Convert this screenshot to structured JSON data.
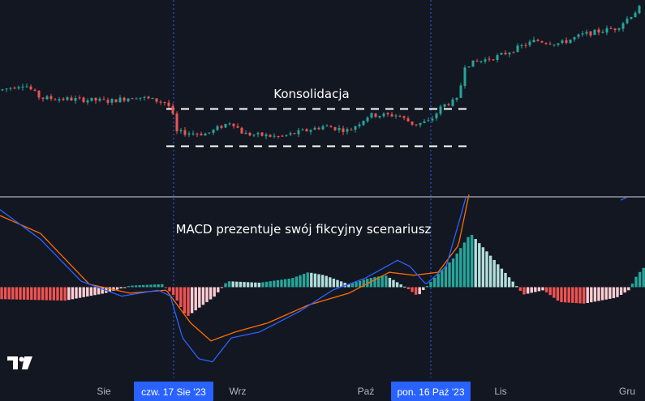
{
  "chart_data": [
    {
      "type": "candlestick",
      "title": "",
      "annotation": "Konsolidacja",
      "colors": {
        "up": "#26a69a",
        "down": "#ef5350",
        "dashed_range": "#ffffff",
        "marker_line": "#2962ff"
      },
      "consolidation_range": {
        "upper": 100.0,
        "lower": 88.0
      },
      "ylim": [
        72,
        135
      ],
      "price_path_anchors": [
        {
          "x": 0,
          "y": 106
        },
        {
          "x": 30,
          "y": 108
        },
        {
          "x": 50,
          "y": 103.5
        },
        {
          "x": 100,
          "y": 103
        },
        {
          "x": 135,
          "y": 102.5
        },
        {
          "x": 168,
          "y": 104
        },
        {
          "x": 205,
          "y": 102
        },
        {
          "x": 212,
          "y": 99.5
        },
        {
          "x": 216,
          "y": 92.5
        },
        {
          "x": 255,
          "y": 92
        },
        {
          "x": 285,
          "y": 96
        },
        {
          "x": 300,
          "y": 92
        },
        {
          "x": 345,
          "y": 91
        },
        {
          "x": 400,
          "y": 94.5
        },
        {
          "x": 430,
          "y": 93
        },
        {
          "x": 455,
          "y": 98
        },
        {
          "x": 490,
          "y": 98
        },
        {
          "x": 510,
          "y": 95
        },
        {
          "x": 530,
          "y": 96
        },
        {
          "x": 545,
          "y": 101
        },
        {
          "x": 565,
          "y": 103
        },
        {
          "x": 572,
          "y": 114
        },
        {
          "x": 615,
          "y": 117
        },
        {
          "x": 660,
          "y": 122
        },
        {
          "x": 690,
          "y": 121
        },
        {
          "x": 720,
          "y": 124
        },
        {
          "x": 760,
          "y": 126
        },
        {
          "x": 795,
          "y": 134
        }
      ]
    },
    {
      "type": "macd",
      "title": "",
      "annotation": "MACD prezentuje swój fikcyjny scenariusz",
      "ylim": [
        -3.0,
        3.0
      ],
      "colors": {
        "macd": "#2962ff",
        "signal": "#ff6d00",
        "hist_up_strong": "#26a69a",
        "hist_up_weak": "#b2dfdb",
        "hist_down_strong": "#ef5350",
        "hist_down_weak": "#ffcdd2"
      },
      "macd_line": [
        {
          "x": 0,
          "y": 2.6
        },
        {
          "x": 50,
          "y": 1.6
        },
        {
          "x": 100,
          "y": 0.2
        },
        {
          "x": 150,
          "y": -0.3
        },
        {
          "x": 195,
          "y": -0.1
        },
        {
          "x": 210,
          "y": -0.3
        },
        {
          "x": 225,
          "y": -1.7
        },
        {
          "x": 245,
          "y": -2.4
        },
        {
          "x": 262,
          "y": -2.5
        },
        {
          "x": 285,
          "y": -1.7
        },
        {
          "x": 320,
          "y": -1.5
        },
        {
          "x": 370,
          "y": -0.8
        },
        {
          "x": 410,
          "y": -0.1
        },
        {
          "x": 450,
          "y": 0.3
        },
        {
          "x": 490,
          "y": 0.9
        },
        {
          "x": 505,
          "y": 0.7
        },
        {
          "x": 525,
          "y": 0.1
        },
        {
          "x": 550,
          "y": 0.7
        },
        {
          "x": 568,
          "y": 2.4
        },
        {
          "x": 575,
          "y": 3.1
        }
      ],
      "signal_line": [
        {
          "x": 0,
          "y": 2.4
        },
        {
          "x": 50,
          "y": 1.8
        },
        {
          "x": 110,
          "y": 0.1
        },
        {
          "x": 160,
          "y": -0.2
        },
        {
          "x": 205,
          "y": -0.1
        },
        {
          "x": 235,
          "y": -1.2
        },
        {
          "x": 260,
          "y": -1.8
        },
        {
          "x": 290,
          "y": -1.5
        },
        {
          "x": 330,
          "y": -1.2
        },
        {
          "x": 380,
          "y": -0.6
        },
        {
          "x": 430,
          "y": -0.2
        },
        {
          "x": 480,
          "y": 0.5
        },
        {
          "x": 510,
          "y": 0.4
        },
        {
          "x": 540,
          "y": 0.5
        },
        {
          "x": 565,
          "y": 1.4
        },
        {
          "x": 578,
          "y": 3.1
        }
      ],
      "histogram_anchors": [
        {
          "x": 0,
          "y": -0.4
        },
        {
          "x": 80,
          "y": -0.45
        },
        {
          "x": 130,
          "y": -0.2
        },
        {
          "x": 160,
          "y": 0.05
        },
        {
          "x": 200,
          "y": 0.1
        },
        {
          "x": 215,
          "y": -0.3
        },
        {
          "x": 230,
          "y": -1.0
        },
        {
          "x": 265,
          "y": -0.3
        },
        {
          "x": 280,
          "y": 0.2
        },
        {
          "x": 320,
          "y": 0.15
        },
        {
          "x": 360,
          "y": 0.3
        },
        {
          "x": 380,
          "y": 0.5
        },
        {
          "x": 400,
          "y": 0.4
        },
        {
          "x": 430,
          "y": 0.1
        },
        {
          "x": 455,
          "y": 0.3
        },
        {
          "x": 475,
          "y": 0.4
        },
        {
          "x": 500,
          "y": 0.0
        },
        {
          "x": 515,
          "y": -0.3
        },
        {
          "x": 535,
          "y": 0.3
        },
        {
          "x": 560,
          "y": 1.0
        },
        {
          "x": 580,
          "y": 1.8
        },
        {
          "x": 600,
          "y": 1.2
        },
        {
          "x": 635,
          "y": 0.1
        },
        {
          "x": 645,
          "y": -0.25
        },
        {
          "x": 670,
          "y": -0.1
        },
        {
          "x": 690,
          "y": -0.5
        },
        {
          "x": 720,
          "y": -0.55
        },
        {
          "x": 760,
          "y": -0.35
        },
        {
          "x": 775,
          "y": -0.1
        },
        {
          "x": 785,
          "y": 0.4
        },
        {
          "x": 795,
          "y": 0.7
        }
      ]
    }
  ],
  "x_axis": {
    "ticks": [
      {
        "x": 128,
        "label": "Sie"
      },
      {
        "x": 293,
        "label": "Wrz"
      },
      {
        "x": 451,
        "label": "Paź"
      },
      {
        "x": 617,
        "label": "Lis"
      },
      {
        "x": 773,
        "label": "Gru"
      }
    ],
    "markers": [
      {
        "x": 214,
        "label": "czw. 17 Sie '23"
      },
      {
        "x": 531,
        "label": "pon. 16 Paź '23"
      }
    ]
  },
  "logo": "TV"
}
